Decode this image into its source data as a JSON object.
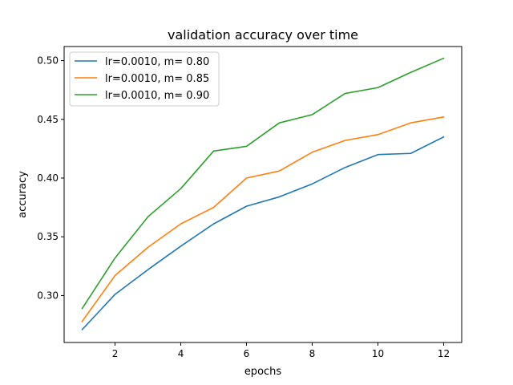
{
  "chart_data": {
    "type": "line",
    "title": "validation accuracy over time",
    "xlabel": "epochs",
    "ylabel": "accuracy",
    "xlim": [
      0.45,
      12.55
    ],
    "ylim": [
      0.26,
      0.512
    ],
    "xticks": [
      2,
      4,
      6,
      8,
      10,
      12
    ],
    "yticks": [
      0.3,
      0.35,
      0.4,
      0.45,
      0.5
    ],
    "xtick_labels": [
      "2",
      "4",
      "6",
      "8",
      "10",
      "12"
    ],
    "ytick_labels": [
      "0.30",
      "0.35",
      "0.40",
      "0.45",
      "0.50"
    ],
    "grid": false,
    "legend_position": "top-left",
    "x": [
      1,
      2,
      3,
      4,
      5,
      6,
      7,
      8,
      9,
      10,
      11,
      12
    ],
    "series": [
      {
        "name": "lr=0.0010, m= 0.80",
        "color": "#1f77b4",
        "values": [
          0.271,
          0.301,
          0.322,
          0.342,
          0.361,
          0.376,
          0.384,
          0.395,
          0.409,
          0.42,
          0.421,
          0.435
        ]
      },
      {
        "name": "lr=0.0010, m= 0.85",
        "color": "#ff7f0e",
        "values": [
          0.278,
          0.317,
          0.341,
          0.361,
          0.375,
          0.4,
          0.406,
          0.422,
          0.432,
          0.437,
          0.447,
          0.452
        ]
      },
      {
        "name": "lr=0.0010, m= 0.90",
        "color": "#2ca02c",
        "values": [
          0.289,
          0.332,
          0.367,
          0.391,
          0.423,
          0.427,
          0.447,
          0.454,
          0.472,
          0.477,
          0.49,
          0.502
        ]
      }
    ]
  }
}
